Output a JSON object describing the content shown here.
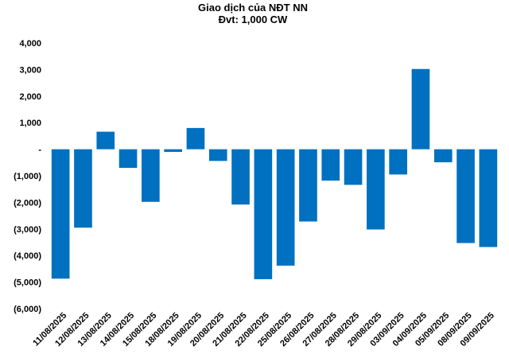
{
  "chart_data": {
    "type": "bar",
    "title": "Giao dịch của NĐT NN",
    "subtitle": "Đvt: 1,000 CW",
    "xlabel": "",
    "ylabel": "",
    "ylim": [
      -6000,
      4000
    ],
    "yticks": [
      4000,
      3000,
      2000,
      1000,
      0,
      -1000,
      -2000,
      -3000,
      -4000,
      -5000,
      -6000
    ],
    "ytick_labels": [
      "4,000",
      "3,000",
      "2,000",
      "1,000",
      "-",
      "(1,000)",
      "(2,000)",
      "(3,000)",
      "(4,000)",
      "(5,000)",
      "(6,000)"
    ],
    "grid": false,
    "legend": "none",
    "bar_color": "#0070C0",
    "categories": [
      "11/08/2025",
      "12/08/2025",
      "13/08/2025",
      "14/08/2025",
      "15/08/2025",
      "18/08/2025",
      "19/08/2025",
      "20/08/2025",
      "21/08/2025",
      "22/08/2025",
      "25/08/2025",
      "26/08/2025",
      "27/08/2025",
      "28/08/2025",
      "29/08/2025",
      "03/09/2025",
      "04/09/2025",
      "05/09/2025",
      "08/09/2025",
      "09/09/2025"
    ],
    "values": [
      -4870,
      -2950,
      660,
      -700,
      -1980,
      -100,
      800,
      -440,
      -2080,
      -4890,
      -4380,
      -2720,
      -1180,
      -1340,
      -3020,
      -950,
      3020,
      -490,
      -3530,
      -3680
    ]
  }
}
